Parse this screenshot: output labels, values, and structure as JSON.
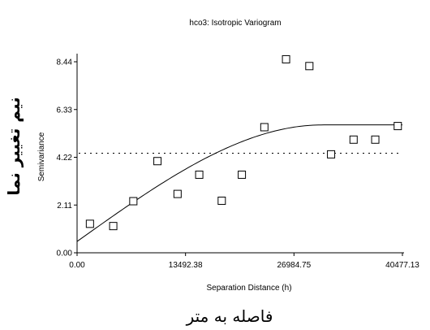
{
  "chart_data": {
    "type": "scatter",
    "title": "hco3: Isotropic Variogram",
    "xlabel": "Separation Distance (h)",
    "ylabel": "Semivariance",
    "xlim": [
      0,
      40477.13
    ],
    "ylim": [
      0,
      8.44
    ],
    "x_ticks": [
      "0.00",
      "13492.38",
      "26984.75",
      "40477.13"
    ],
    "y_ticks": [
      "0.00",
      "2.11",
      "4.22",
      "6.33",
      "8.44"
    ],
    "x_tick_values": [
      0,
      13492.38,
      26984.75,
      40477.13
    ],
    "y_tick_values": [
      0,
      2.11,
      4.22,
      6.33,
      8.44
    ],
    "points": [
      {
        "x": 1600,
        "y": 1.28
      },
      {
        "x": 4500,
        "y": 1.18
      },
      {
        "x": 7000,
        "y": 2.28
      },
      {
        "x": 10000,
        "y": 4.05
      },
      {
        "x": 12500,
        "y": 2.6
      },
      {
        "x": 15200,
        "y": 3.45
      },
      {
        "x": 18000,
        "y": 2.3
      },
      {
        "x": 20500,
        "y": 3.45
      },
      {
        "x": 23300,
        "y": 5.55
      },
      {
        "x": 26000,
        "y": 8.55
      },
      {
        "x": 28900,
        "y": 8.25
      },
      {
        "x": 31600,
        "y": 4.35
      },
      {
        "x": 34400,
        "y": 5.0
      },
      {
        "x": 37100,
        "y": 5.0
      },
      {
        "x": 39900,
        "y": 5.6
      }
    ],
    "model_curve": {
      "nugget": 0.5,
      "sill": 5.65,
      "range": 30500,
      "shape": "spherical"
    },
    "reference_line": {
      "y": 4.4,
      "style": "dotted"
    },
    "grid": false,
    "persian_ylabel": "نیم تغییر نما",
    "persian_xlabel": "فاصله به متر"
  }
}
